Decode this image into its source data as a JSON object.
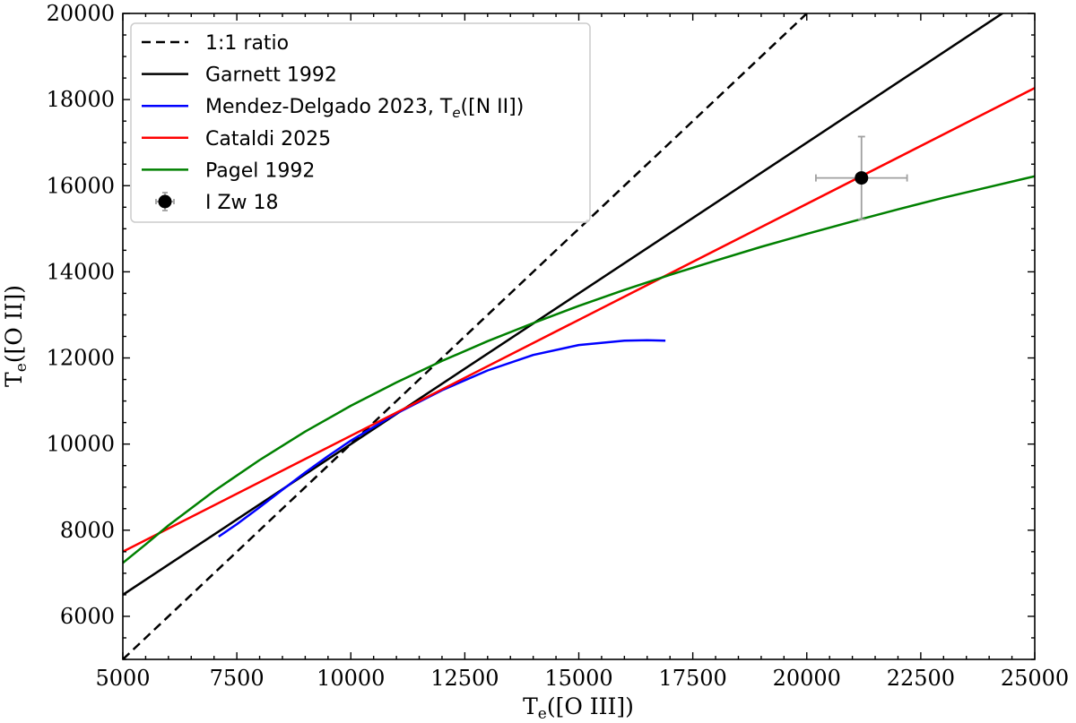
{
  "chart_data": {
    "type": "line",
    "xlabel": "Te([O III])",
    "ylabel": "Te([O II])",
    "xlim": [
      5000,
      25000
    ],
    "ylim": [
      5000,
      20000
    ],
    "x_ticks": [
      5000,
      7500,
      10000,
      12500,
      15000,
      17500,
      20000,
      22500,
      25000
    ],
    "y_ticks": [
      6000,
      8000,
      10000,
      12000,
      14000,
      16000,
      18000,
      20000
    ],
    "x_tick_labels": [
      "5000",
      "7500",
      "10000",
      "12500",
      "15000",
      "17500",
      "20000",
      "22500",
      "25000"
    ],
    "y_tick_labels": [
      "6000",
      "8000",
      "10000",
      "12000",
      "14000",
      "16000",
      "18000",
      "20000"
    ],
    "legend_position": "top-left",
    "series": [
      {
        "name": "1:1 ratio",
        "color": "#000000",
        "style": "dashed",
        "x": [
          5000,
          20000
        ],
        "y": [
          5000,
          20000
        ]
      },
      {
        "name": "Garnett 1992",
        "color": "#000000",
        "style": "solid",
        "x": [
          5000,
          24400
        ],
        "y": [
          6500,
          20080
        ]
      },
      {
        "name": "Mendez-Delgado 2023, Te([N II])",
        "color": "#0000ff",
        "style": "solid",
        "x": [
          7100,
          7500,
          8000,
          8500,
          9000,
          9500,
          10000,
          11000,
          12000,
          13000,
          14000,
          15000,
          16000,
          16500,
          16900
        ],
        "y": [
          7850,
          8140,
          8530,
          8940,
          9340,
          9720,
          10080,
          10710,
          11250,
          11710,
          12070,
          12300,
          12400,
          12410,
          12400
        ]
      },
      {
        "name": "Cataldi 2025",
        "color": "#ff0000",
        "style": "solid",
        "x": [
          5000,
          25000
        ],
        "y": [
          7500,
          18270
        ]
      },
      {
        "name": "Pagel 1992",
        "color": "#008000",
        "style": "solid",
        "x": [
          5000,
          5500,
          6000,
          7000,
          8000,
          9000,
          10000,
          11000,
          12000,
          13000,
          14000,
          15000,
          16000,
          17000,
          18000,
          19000,
          20000,
          21000,
          22000,
          23000,
          24000,
          25000
        ],
        "y": [
          7240,
          7670,
          8110,
          8910,
          9630,
          10290,
          10890,
          11430,
          11930,
          12390,
          12810,
          13210,
          13580,
          13930,
          14260,
          14580,
          14880,
          15170,
          15450,
          15720,
          15970,
          16220
        ]
      }
    ],
    "points": [
      {
        "name": "I Zw 18",
        "x": 21200,
        "y": 16180,
        "x_err": 1000,
        "y_err": 960,
        "color": "#000000",
        "err_color": "#a0a0a0"
      }
    ],
    "legend": [
      {
        "label_main": "1:1 ratio",
        "label_sub": "",
        "label_tail": ""
      },
      {
        "label_main": "Garnett 1992",
        "label_sub": "",
        "label_tail": ""
      },
      {
        "label_main": "Mendez-Delgado 2023, T",
        "label_sub": "e",
        "label_tail": "([N II])"
      },
      {
        "label_main": "Cataldi 2025",
        "label_sub": "",
        "label_tail": ""
      },
      {
        "label_main": "Pagel 1992",
        "label_sub": "",
        "label_tail": ""
      },
      {
        "label_main": "I Zw 18",
        "label_sub": "",
        "label_tail": ""
      }
    ],
    "x_axis_text": {
      "main": "T",
      "sub": "e",
      "tail": "([O III])"
    },
    "y_axis_text": {
      "main": "T",
      "sub": "e",
      "tail": "([O II])"
    }
  }
}
